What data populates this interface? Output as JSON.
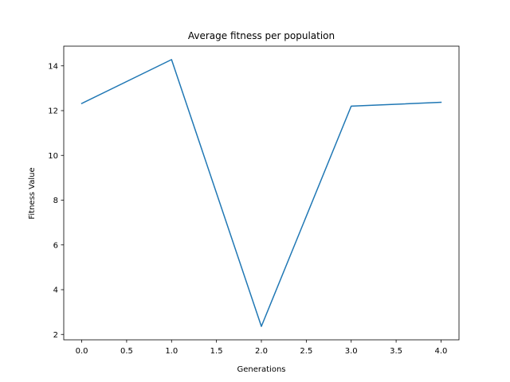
{
  "chart_data": {
    "type": "line",
    "title": "Average fitness per population",
    "xlabel": "Generations",
    "ylabel": "Fitness Value",
    "x": [
      0,
      1,
      2,
      3,
      4
    ],
    "series": [
      {
        "values": [
          12.32,
          14.28,
          2.36,
          12.2,
          12.37
        ],
        "color": "#1f77b4"
      }
    ],
    "xlim": [
      -0.2,
      4.2
    ],
    "ylim": [
      1.76,
      14.88
    ],
    "xticks": [
      0,
      0.5,
      1,
      1.5,
      2,
      2.5,
      3,
      3.5,
      4
    ],
    "xtick_labels": [
      "0.0",
      "0.5",
      "1.0",
      "1.5",
      "2.0",
      "2.5",
      "3.0",
      "3.5",
      "4.0"
    ],
    "yticks": [
      2,
      4,
      6,
      8,
      10,
      12,
      14
    ],
    "ytick_labels": [
      "2",
      "4",
      "6",
      "8",
      "10",
      "12",
      "14"
    ],
    "grid": false,
    "legend": "none"
  }
}
